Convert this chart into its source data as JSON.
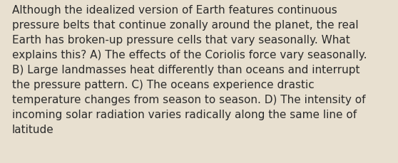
{
  "background_color": "#e8e0d0",
  "text_color": "#2b2b2b",
  "font_size": 11.0,
  "text": "Although the idealized version of Earth features continuous\npressure belts that continue zonally around the planet, the real\nEarth has broken-up pressure cells that vary seasonally. What\nexplains this? A) The effects of the Coriolis force vary seasonally.\nB) Large landmasses heat differently than oceans and interrupt\nthe pressure pattern. C) The oceans experience drastic\ntemperature changes from season to season. D) The intensity of\nincoming solar radiation varies radically along the same line of\nlatitude",
  "figsize": [
    5.58,
    2.3
  ],
  "dpi": 100
}
